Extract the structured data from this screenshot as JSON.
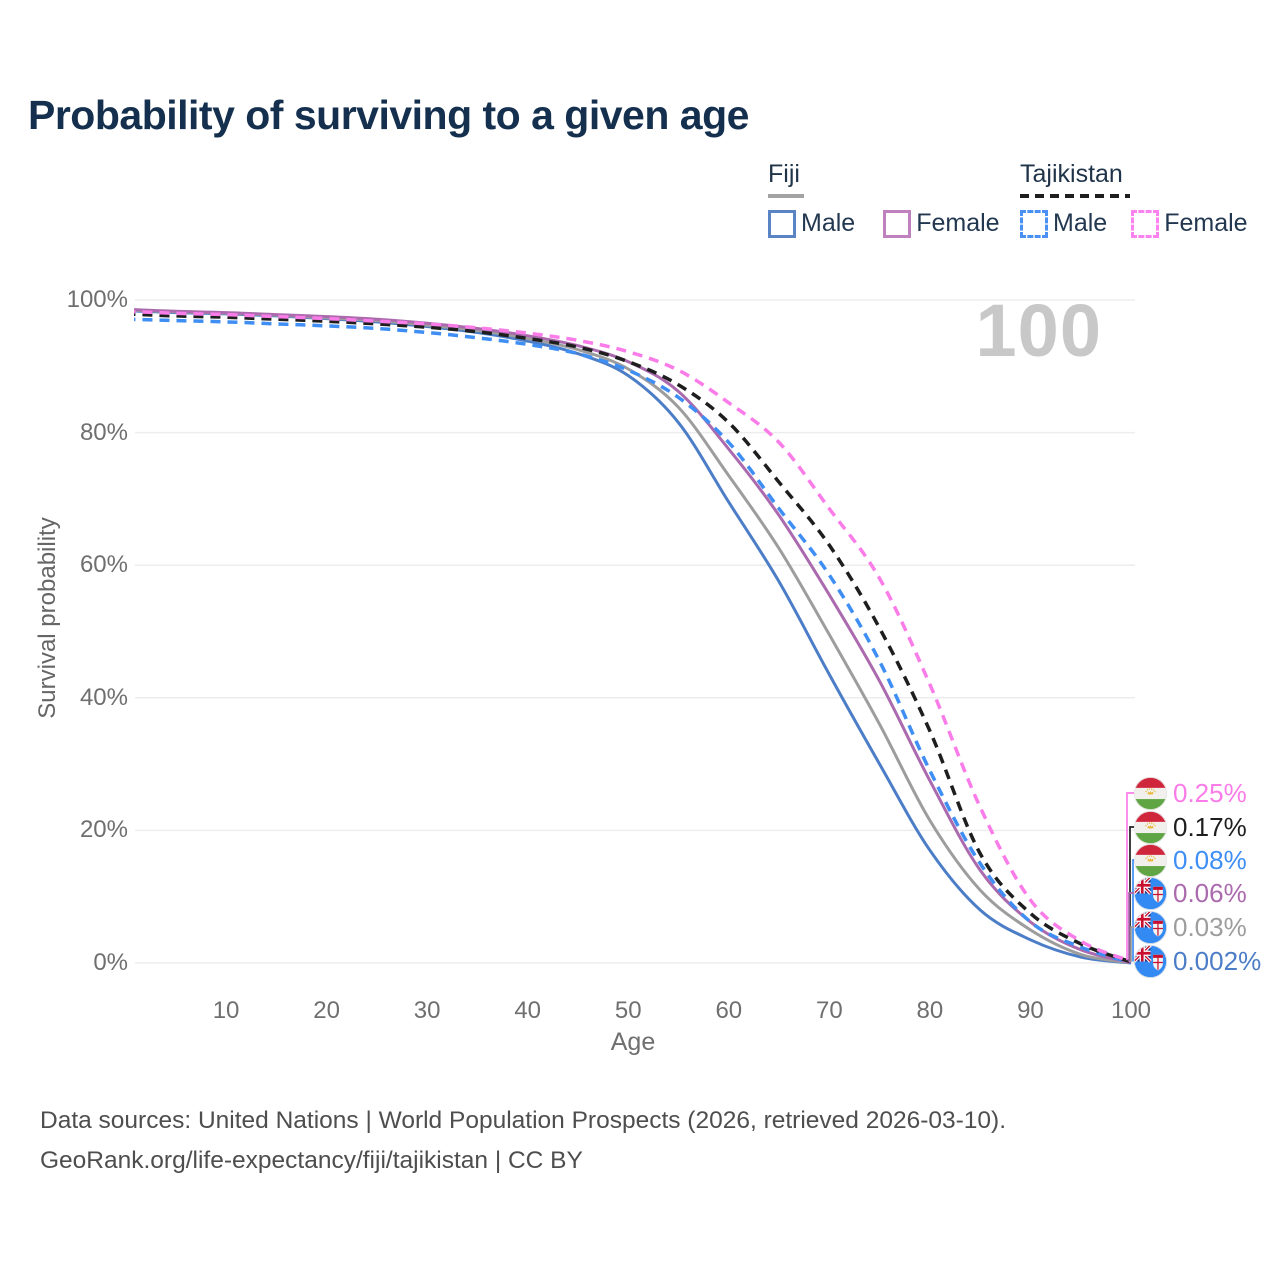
{
  "title": "Probability of surviving to a given age",
  "watermark": "100",
  "legend": {
    "fiji": {
      "title": "Fiji",
      "male_label": "Male",
      "female_label": "Female",
      "underline_color": "#a3a3a3",
      "male_color": "#5b84c4",
      "female_color": "#c081bf"
    },
    "tajikistan": {
      "title": "Tajikistan",
      "male_label": "Male",
      "female_label": "Female",
      "underline_color": "#1e1e1e",
      "male_color": "#4a90f5",
      "female_color": "#fc82f0"
    }
  },
  "chart_data": {
    "type": "line",
    "title": "Probability of surviving to a given age",
    "xlabel": "Age",
    "ylabel": "Survival probability",
    "xlim": [
      0,
      100
    ],
    "ylim": [
      0,
      100
    ],
    "grid": "horizontal",
    "x_ticks": [
      10,
      20,
      30,
      40,
      50,
      60,
      70,
      80,
      90,
      100
    ],
    "y_ticks": [
      0,
      20,
      40,
      60,
      80,
      100
    ],
    "y_tick_labels": [
      "0%",
      "20%",
      "40%",
      "60%",
      "80%",
      "100%"
    ],
    "ages": [
      0,
      5,
      10,
      15,
      20,
      25,
      30,
      35,
      40,
      45,
      50,
      55,
      60,
      65,
      70,
      75,
      80,
      85,
      90,
      95,
      100
    ],
    "series": [
      {
        "id": "taj-female",
        "country": "Tajikistan",
        "sex": "Female",
        "line": "dashed",
        "color": "#fa7ce8",
        "end_label": "0.25%",
        "flag": "tajikistan",
        "values": [
          98.3,
          98.0,
          97.8,
          97.5,
          97.2,
          96.8,
          96.4,
          95.8,
          95.0,
          93.9,
          92.2,
          89.4,
          84.5,
          78.5,
          68.5,
          58.0,
          42.0,
          23.5,
          9.5,
          3.3,
          0.25
        ]
      },
      {
        "id": "taj-total",
        "country": "Tajikistan",
        "sex": "Both",
        "line": "dashed",
        "color": "#1e1e1e",
        "end_label": "0.17%",
        "flag": "tajikistan",
        "values": [
          97.9,
          97.6,
          97.4,
          97.1,
          96.8,
          96.4,
          95.9,
          95.2,
          94.2,
          92.9,
          90.7,
          87.2,
          81.5,
          72.5,
          63.0,
          50.5,
          35.0,
          16.5,
          7.5,
          2.9,
          0.17
        ]
      },
      {
        "id": "taj-male",
        "country": "Tajikistan",
        "sex": "Male",
        "line": "dashed",
        "color": "#3f8ef4",
        "end_label": "0.08%",
        "flag": "tajikistan",
        "values": [
          97.1,
          96.9,
          96.7,
          96.4,
          96.1,
          95.7,
          95.1,
          94.3,
          93.3,
          91.9,
          89.4,
          85.3,
          78.5,
          68.5,
          58.5,
          45.5,
          29.0,
          15.0,
          6.2,
          2.4,
          0.08
        ]
      },
      {
        "id": "fiji-female",
        "country": "Fiji",
        "sex": "Female",
        "line": "solid",
        "color": "#ab6aae",
        "end_label": "0.06%",
        "flag": "fiji",
        "values": [
          98.6,
          98.3,
          98.1,
          97.8,
          97.5,
          97.1,
          96.5,
          95.7,
          94.6,
          93.1,
          90.7,
          86.2,
          77.5,
          67.5,
          55.5,
          42.5,
          27.5,
          14.0,
          6.2,
          2.0,
          0.06
        ]
      },
      {
        "id": "fiji-total",
        "country": "Fiji",
        "sex": "Both",
        "line": "solid",
        "color": "#9d9d9d",
        "end_label": "0.03%",
        "flag": "fiji",
        "values": [
          98.5,
          98.2,
          98.0,
          97.7,
          97.3,
          96.9,
          96.2,
          95.4,
          94.2,
          92.5,
          89.6,
          83.8,
          73.5,
          62.5,
          49.5,
          36.0,
          21.5,
          11.0,
          5.0,
          1.3,
          0.03
        ]
      },
      {
        "id": "fiji-male",
        "country": "Fiji",
        "sex": "Male",
        "line": "solid",
        "color": "#4c7dc7",
        "end_label": "0.002%",
        "flag": "fiji",
        "values": [
          98.4,
          98.1,
          97.9,
          97.6,
          97.2,
          96.7,
          96.0,
          95.1,
          93.8,
          91.9,
          88.6,
          81.5,
          69.5,
          57.5,
          43.5,
          30.0,
          17.0,
          8.0,
          3.5,
          0.9,
          0.002
        ]
      }
    ]
  },
  "footer": {
    "line1": "Data sources: United Nations | World Population Prospects (2026, retrieved 2026-03-10).",
    "line2": "GeoRank.org/life-expectancy/fiji/tajikistan | CC BY"
  }
}
